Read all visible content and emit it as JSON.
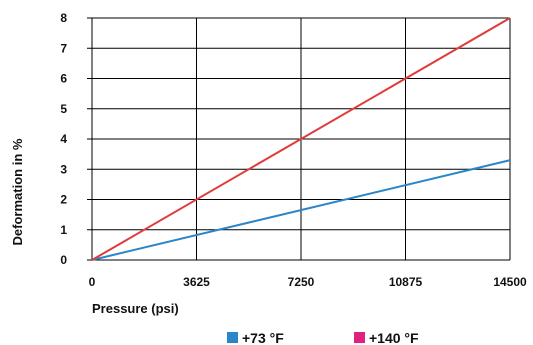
{
  "chart_data": {
    "type": "line",
    "title": "",
    "xlabel": "Pressure (psi)",
    "ylabel": "Deformation in %",
    "xlim": [
      0,
      14500
    ],
    "ylim": [
      0,
      8
    ],
    "x_ticks": [
      "0",
      "3625",
      "7250",
      "10875",
      "14500"
    ],
    "y_ticks": [
      "0",
      "1",
      "2",
      "3",
      "4",
      "5",
      "6",
      "7",
      "8"
    ],
    "grid": true,
    "legend_position": "bottom",
    "series": [
      {
        "name": "+73 °F",
        "color": "#2a86c9",
        "x": [
          0,
          14500
        ],
        "y": [
          0,
          3.3
        ]
      },
      {
        "name": "+140 °F",
        "color": "#e03c3c",
        "x": [
          0,
          14500
        ],
        "y": [
          0,
          8
        ]
      }
    ],
    "legend": [
      {
        "label": "+73 °F",
        "color": "#2a86c9"
      },
      {
        "label": "+140 °F",
        "color": "#e0217f"
      }
    ]
  }
}
